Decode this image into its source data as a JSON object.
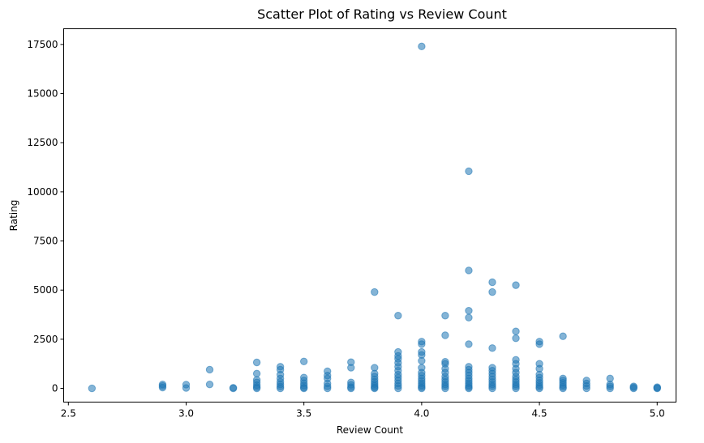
{
  "chart_data": {
    "type": "scatter",
    "title": "Scatter Plot of Rating vs Review Count",
    "xlabel": "Review Count",
    "ylabel": "Rating",
    "xlim": [
      2.48,
      5.08
    ],
    "ylim": [
      -700,
      18300
    ],
    "xticks": [
      {
        "value": 2.5,
        "label": "2.5"
      },
      {
        "value": 3.0,
        "label": "3.0"
      },
      {
        "value": 3.5,
        "label": "3.5"
      },
      {
        "value": 4.0,
        "label": "4.0"
      },
      {
        "value": 4.5,
        "label": "4.5"
      },
      {
        "value": 5.0,
        "label": "5.0"
      }
    ],
    "yticks": [
      {
        "value": 0,
        "label": "0"
      },
      {
        "value": 2500,
        "label": "2500"
      },
      {
        "value": 5000,
        "label": "5000"
      },
      {
        "value": 7500,
        "label": "7500"
      },
      {
        "value": 10000,
        "label": "10000"
      },
      {
        "value": 12500,
        "label": "12500"
      },
      {
        "value": 15000,
        "label": "15000"
      },
      {
        "value": 17500,
        "label": "17500"
      }
    ],
    "grid": false,
    "marker_color": "#1f77b4",
    "marker_alpha": 0.55,
    "points": [
      {
        "x": 2.6,
        "y": 0
      },
      {
        "x": 2.9,
        "y": 200
      },
      {
        "x": 2.9,
        "y": 120
      },
      {
        "x": 2.9,
        "y": 40
      },
      {
        "x": 3.0,
        "y": 190
      },
      {
        "x": 3.0,
        "y": 20
      },
      {
        "x": 3.1,
        "y": 950
      },
      {
        "x": 3.1,
        "y": 200
      },
      {
        "x": 3.2,
        "y": 30
      },
      {
        "x": 3.2,
        "y": 0
      },
      {
        "x": 3.3,
        "y": 1320
      },
      {
        "x": 3.3,
        "y": 750
      },
      {
        "x": 3.3,
        "y": 430
      },
      {
        "x": 3.3,
        "y": 300
      },
      {
        "x": 3.3,
        "y": 160
      },
      {
        "x": 3.3,
        "y": 60
      },
      {
        "x": 3.3,
        "y": 0
      },
      {
        "x": 3.4,
        "y": 1100
      },
      {
        "x": 3.4,
        "y": 950
      },
      {
        "x": 3.4,
        "y": 700
      },
      {
        "x": 3.4,
        "y": 500
      },
      {
        "x": 3.4,
        "y": 330
      },
      {
        "x": 3.4,
        "y": 200
      },
      {
        "x": 3.4,
        "y": 90
      },
      {
        "x": 3.4,
        "y": 0
      },
      {
        "x": 3.5,
        "y": 1370
      },
      {
        "x": 3.5,
        "y": 550
      },
      {
        "x": 3.5,
        "y": 400
      },
      {
        "x": 3.5,
        "y": 260
      },
      {
        "x": 3.5,
        "y": 140
      },
      {
        "x": 3.5,
        "y": 40
      },
      {
        "x": 3.5,
        "y": 0
      },
      {
        "x": 3.6,
        "y": 870
      },
      {
        "x": 3.6,
        "y": 650
      },
      {
        "x": 3.6,
        "y": 500
      },
      {
        "x": 3.6,
        "y": 250
      },
      {
        "x": 3.6,
        "y": 100
      },
      {
        "x": 3.6,
        "y": 0
      },
      {
        "x": 3.7,
        "y": 1330
      },
      {
        "x": 3.7,
        "y": 1050
      },
      {
        "x": 3.7,
        "y": 300
      },
      {
        "x": 3.7,
        "y": 180
      },
      {
        "x": 3.7,
        "y": 60
      },
      {
        "x": 3.7,
        "y": 0
      },
      {
        "x": 3.8,
        "y": 4900
      },
      {
        "x": 3.8,
        "y": 1050
      },
      {
        "x": 3.8,
        "y": 750
      },
      {
        "x": 3.8,
        "y": 600
      },
      {
        "x": 3.8,
        "y": 450
      },
      {
        "x": 3.8,
        "y": 330
      },
      {
        "x": 3.8,
        "y": 220
      },
      {
        "x": 3.8,
        "y": 120
      },
      {
        "x": 3.8,
        "y": 40
      },
      {
        "x": 3.8,
        "y": 0
      },
      {
        "x": 3.9,
        "y": 3700
      },
      {
        "x": 3.9,
        "y": 1850
      },
      {
        "x": 3.9,
        "y": 1650
      },
      {
        "x": 3.9,
        "y": 1500
      },
      {
        "x": 3.9,
        "y": 1300
      },
      {
        "x": 3.9,
        "y": 1100
      },
      {
        "x": 3.9,
        "y": 900
      },
      {
        "x": 3.9,
        "y": 700
      },
      {
        "x": 3.9,
        "y": 550
      },
      {
        "x": 3.9,
        "y": 400
      },
      {
        "x": 3.9,
        "y": 250
      },
      {
        "x": 3.9,
        "y": 120
      },
      {
        "x": 3.9,
        "y": 0
      },
      {
        "x": 4.0,
        "y": 17400
      },
      {
        "x": 4.0,
        "y": 2380
      },
      {
        "x": 4.0,
        "y": 2250
      },
      {
        "x": 4.0,
        "y": 1850
      },
      {
        "x": 4.0,
        "y": 1700
      },
      {
        "x": 4.0,
        "y": 1400
      },
      {
        "x": 4.0,
        "y": 1050
      },
      {
        "x": 4.0,
        "y": 800
      },
      {
        "x": 4.0,
        "y": 650
      },
      {
        "x": 4.0,
        "y": 500
      },
      {
        "x": 4.0,
        "y": 380
      },
      {
        "x": 4.0,
        "y": 260
      },
      {
        "x": 4.0,
        "y": 150
      },
      {
        "x": 4.0,
        "y": 60
      },
      {
        "x": 4.0,
        "y": 0
      },
      {
        "x": 4.1,
        "y": 3700
      },
      {
        "x": 4.1,
        "y": 2700
      },
      {
        "x": 4.1,
        "y": 1350
      },
      {
        "x": 4.1,
        "y": 1250
      },
      {
        "x": 4.1,
        "y": 1000
      },
      {
        "x": 4.1,
        "y": 800
      },
      {
        "x": 4.1,
        "y": 600
      },
      {
        "x": 4.1,
        "y": 450
      },
      {
        "x": 4.1,
        "y": 320
      },
      {
        "x": 4.1,
        "y": 200
      },
      {
        "x": 4.1,
        "y": 100
      },
      {
        "x": 4.1,
        "y": 0
      },
      {
        "x": 4.2,
        "y": 11050
      },
      {
        "x": 4.2,
        "y": 6000
      },
      {
        "x": 4.2,
        "y": 3950
      },
      {
        "x": 4.2,
        "y": 3600
      },
      {
        "x": 4.2,
        "y": 2250
      },
      {
        "x": 4.2,
        "y": 1100
      },
      {
        "x": 4.2,
        "y": 950
      },
      {
        "x": 4.2,
        "y": 800
      },
      {
        "x": 4.2,
        "y": 650
      },
      {
        "x": 4.2,
        "y": 500
      },
      {
        "x": 4.2,
        "y": 380
      },
      {
        "x": 4.2,
        "y": 260
      },
      {
        "x": 4.2,
        "y": 150
      },
      {
        "x": 4.2,
        "y": 60
      },
      {
        "x": 4.2,
        "y": 0
      },
      {
        "x": 4.3,
        "y": 5400
      },
      {
        "x": 4.3,
        "y": 4900
      },
      {
        "x": 4.3,
        "y": 2050
      },
      {
        "x": 4.3,
        "y": 1050
      },
      {
        "x": 4.3,
        "y": 900
      },
      {
        "x": 4.3,
        "y": 750
      },
      {
        "x": 4.3,
        "y": 600
      },
      {
        "x": 4.3,
        "y": 450
      },
      {
        "x": 4.3,
        "y": 320
      },
      {
        "x": 4.3,
        "y": 200
      },
      {
        "x": 4.3,
        "y": 100
      },
      {
        "x": 4.3,
        "y": 0
      },
      {
        "x": 4.4,
        "y": 5250
      },
      {
        "x": 4.4,
        "y": 2900
      },
      {
        "x": 4.4,
        "y": 2550
      },
      {
        "x": 4.4,
        "y": 1450
      },
      {
        "x": 4.4,
        "y": 1250
      },
      {
        "x": 4.4,
        "y": 1000
      },
      {
        "x": 4.4,
        "y": 800
      },
      {
        "x": 4.4,
        "y": 600
      },
      {
        "x": 4.4,
        "y": 450
      },
      {
        "x": 4.4,
        "y": 320
      },
      {
        "x": 4.4,
        "y": 200
      },
      {
        "x": 4.4,
        "y": 100
      },
      {
        "x": 4.4,
        "y": 0
      },
      {
        "x": 4.5,
        "y": 2380
      },
      {
        "x": 4.5,
        "y": 2250
      },
      {
        "x": 4.5,
        "y": 1250
      },
      {
        "x": 4.5,
        "y": 1000
      },
      {
        "x": 4.5,
        "y": 700
      },
      {
        "x": 4.5,
        "y": 550
      },
      {
        "x": 4.5,
        "y": 400
      },
      {
        "x": 4.5,
        "y": 280
      },
      {
        "x": 4.5,
        "y": 170
      },
      {
        "x": 4.5,
        "y": 70
      },
      {
        "x": 4.5,
        "y": 0
      },
      {
        "x": 4.6,
        "y": 2650
      },
      {
        "x": 4.6,
        "y": 500
      },
      {
        "x": 4.6,
        "y": 400
      },
      {
        "x": 4.6,
        "y": 280
      },
      {
        "x": 4.6,
        "y": 170
      },
      {
        "x": 4.6,
        "y": 70
      },
      {
        "x": 4.6,
        "y": 0
      },
      {
        "x": 4.7,
        "y": 400
      },
      {
        "x": 4.7,
        "y": 250
      },
      {
        "x": 4.7,
        "y": 120
      },
      {
        "x": 4.7,
        "y": 0
      },
      {
        "x": 4.8,
        "y": 500
      },
      {
        "x": 4.8,
        "y": 200
      },
      {
        "x": 4.8,
        "y": 100
      },
      {
        "x": 4.8,
        "y": 0
      },
      {
        "x": 4.9,
        "y": 100
      },
      {
        "x": 4.9,
        "y": 50
      },
      {
        "x": 4.9,
        "y": 0
      },
      {
        "x": 5.0,
        "y": 60
      },
      {
        "x": 5.0,
        "y": 20
      },
      {
        "x": 5.0,
        "y": 0
      }
    ]
  }
}
